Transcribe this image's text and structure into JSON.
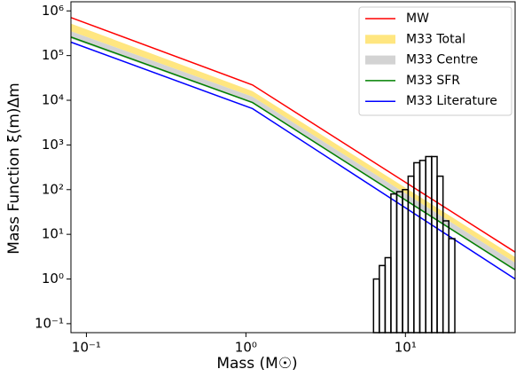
{
  "chart_data": {
    "type": "line",
    "xlabel": "Mass (M☉)",
    "ylabel": "Mass Function ξ(m)Δm",
    "xscale": "log",
    "yscale": "log",
    "xlim": [
      0.08,
      48.7
    ],
    "ylim": [
      0.063,
      1600000
    ],
    "xticks": [
      {
        "value": 0.1,
        "label": "10⁻¹"
      },
      {
        "value": 1,
        "label": "10⁰"
      },
      {
        "value": 10,
        "label": "10¹"
      }
    ],
    "yticks": [
      {
        "value": 0.1,
        "label": "10⁻¹"
      },
      {
        "value": 1,
        "label": "10⁰"
      },
      {
        "value": 10,
        "label": "10¹"
      },
      {
        "value": 100,
        "label": "10²"
      },
      {
        "value": 1000,
        "label": "10³"
      },
      {
        "value": 10000,
        "label": "10⁴"
      },
      {
        "value": 100000,
        "label": "10⁵"
      },
      {
        "value": 1000000,
        "label": "10⁶"
      }
    ],
    "legend": "upper right",
    "x": [
      0.08,
      1.1,
      48.7
    ],
    "series": [
      {
        "name": "MW",
        "color": "#ff0000",
        "values": [
          710000,
          22000,
          4
        ]
      },
      {
        "name": "M33 Total",
        "color": "#ffe680",
        "values": [
          520000,
          16000,
          3.1
        ],
        "lower": [
          350000,
          12000,
          2.3
        ]
      },
      {
        "name": "M33 Centre",
        "color": "#d3d3d3",
        "values": [
          350000,
          12000,
          2.3
        ],
        "lower": [
          240000,
          8500,
          1.5
        ]
      },
      {
        "name": "M33 SFR",
        "color": "#008000",
        "values": [
          260000,
          8900,
          1.6
        ]
      },
      {
        "name": "M33 Literature",
        "color": "#0000ff",
        "values": [
          200000,
          6500,
          1.0
        ]
      }
    ],
    "histogram": {
      "color": "#000000",
      "bins": [
        6.31,
        6.86,
        7.46,
        8.11,
        8.82,
        9.59,
        10.4,
        11.3,
        12.3,
        13.4,
        14.6,
        15.8,
        17.2,
        18.7,
        20.4
      ],
      "counts": [
        1,
        2,
        3,
        80,
        90,
        100,
        200,
        400,
        450,
        550,
        550,
        200,
        20,
        8
      ]
    }
  }
}
